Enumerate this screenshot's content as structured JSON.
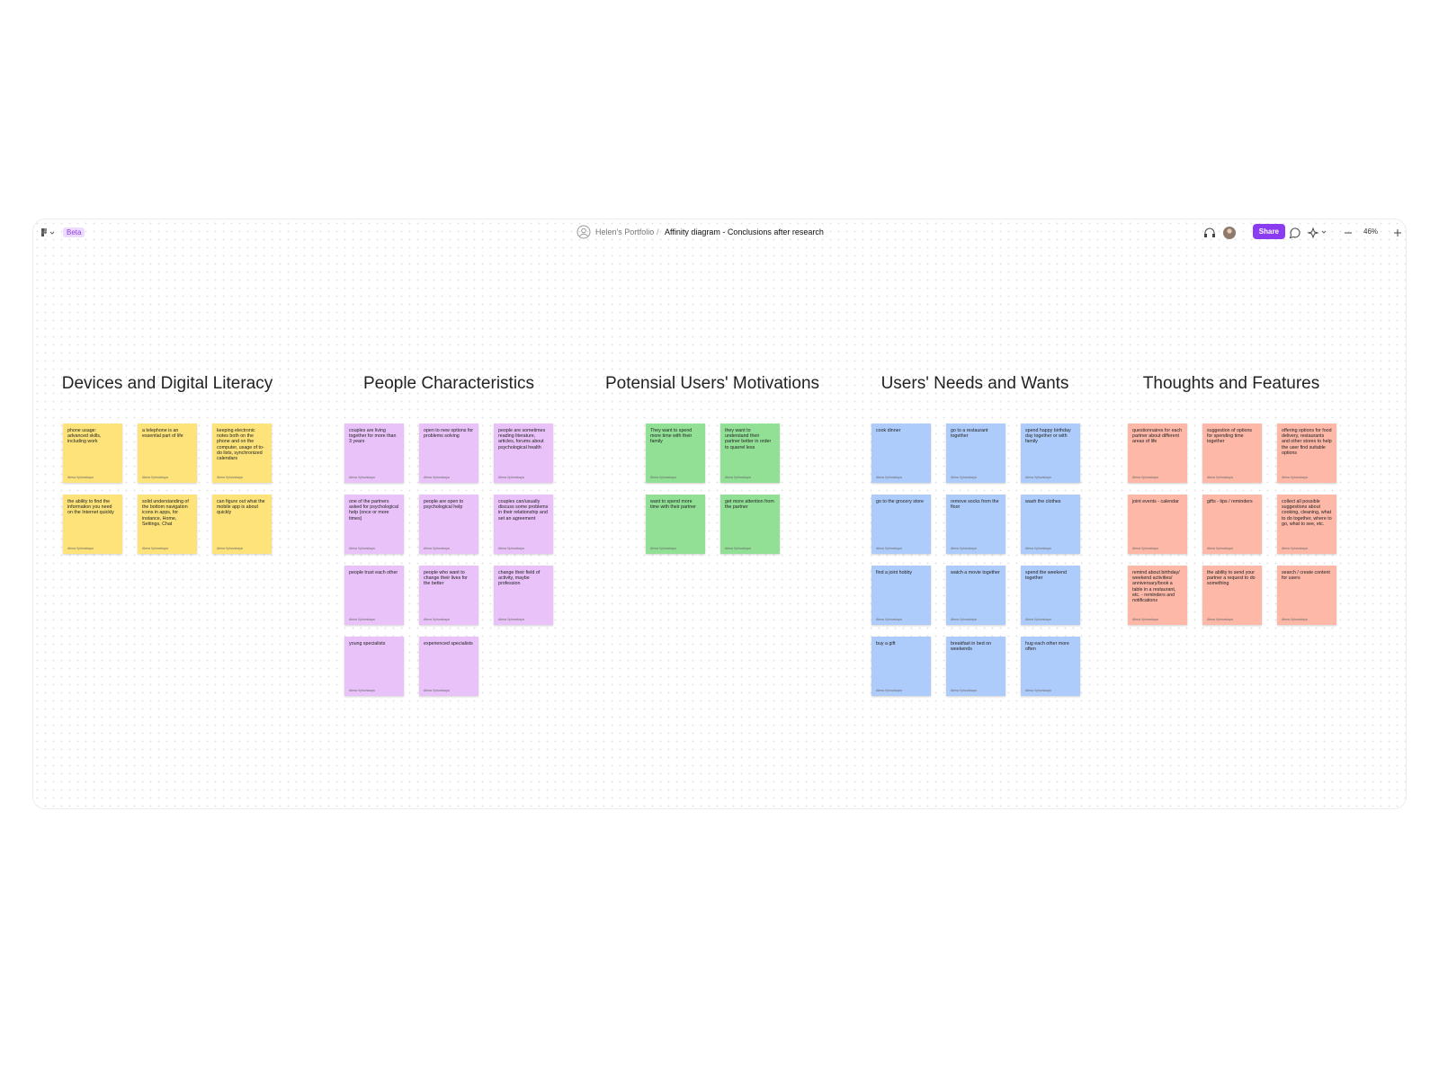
{
  "toolbar": {
    "badge": "Beta",
    "workspace": "Helen's Portfolio",
    "separator": "/",
    "file_name": "Affinity diagram - Conclusions after research",
    "share": "Share",
    "zoom": "46%"
  },
  "columns": [
    {
      "title": "Devices and Digital Literacy",
      "color": "#fde37a",
      "grid_columns": 3,
      "notes": [
        {
          "text": "phone usage: advanced skills, including work",
          "author": "Alena Vyhovskaya"
        },
        {
          "text": "a telephone is an essential part of life",
          "author": "Alena Vyhovskaya"
        },
        {
          "text": "keeping electronic notes both on the phone and on the computer, usage of to-do lists, synchronized calendars",
          "author": "Alena Vyhovskaya"
        },
        {
          "text": "the ability to find the information you need on the Internet quickly",
          "author": "Alena Vyhovskaya"
        },
        {
          "text": "solid understanding of the bottom navigation icons in apps, for instance, Home, Settings, Chat",
          "author": "Alena Vyhovskaya"
        },
        {
          "text": "can figure out what the mobile app is about quickly",
          "author": "Alena Vyhovskaya"
        }
      ]
    },
    {
      "title": "People Characteristics",
      "color": "#e8c2f8",
      "grid_columns": 3,
      "notes": [
        {
          "text": "couples are living together for more than 3 years",
          "author": "Alena Vyhovskaya"
        },
        {
          "text": "open to new options for problems solving",
          "author": "Alena Vyhovskaya"
        },
        {
          "text": "people are sometimes reading literature, articles, forums about psychological health",
          "author": "Alena Vyhovskaya"
        },
        {
          "text": "one of the partners asked for psychological help (once or more times)",
          "author": "Alena Vyhovskaya"
        },
        {
          "text": "people are open to psychological help",
          "author": "Alena Vyhovskaya"
        },
        {
          "text": "couples can/usually discuss some problems in their relationship and set an agreement",
          "author": "Alena Vyhovskaya"
        },
        {
          "text": "people trust each other",
          "author": "Alena Vyhovskaya"
        },
        {
          "text": "people who want to change their lives for the better",
          "author": "Alena Vyhovskaya"
        },
        {
          "text": "change their field of activity, maybe profession",
          "author": "Alena Vyhovskaya"
        },
        {
          "text": "young specialists",
          "author": "Alena Vyhovskaya"
        },
        {
          "text": "experienced specialists",
          "author": "Alena Vyhovskaya"
        }
      ]
    },
    {
      "title": "Potensial Users' Motivations",
      "color": "#92e096",
      "grid_columns": 2,
      "notes": [
        {
          "text": "They want to spend more time with their family",
          "author": "Alena Vyhovskaya"
        },
        {
          "text": "they want to understand their partner better in order to quarrel less",
          "author": "Alena Vyhovskaya"
        },
        {
          "text": "want to spend more time with their partner",
          "author": "Alena Vyhovskaya"
        },
        {
          "text": "get more attention from the partner",
          "author": "Alena Vyhovskaya"
        }
      ]
    },
    {
      "title": "Users' Needs and Wants",
      "color": "#aeccfb",
      "grid_columns": 3,
      "notes": [
        {
          "text": "cook dinner",
          "author": "Alena Vyhovskaya"
        },
        {
          "text": "go to a restaurant together",
          "author": "Alena Vyhovskaya"
        },
        {
          "text": "spend happy birthday day together or with family",
          "author": "Alena Vyhovskaya"
        },
        {
          "text": "go to the grocery store",
          "author": "Alena Vyhovskaya"
        },
        {
          "text": "remove socks from the floor",
          "author": "Alena Vyhovskaya"
        },
        {
          "text": "wash the clothes",
          "author": "Alena Vyhovskaya"
        },
        {
          "text": "find a joint hobby",
          "author": "Alena Vyhovskaya"
        },
        {
          "text": "watch a movie together",
          "author": "Alena Vyhovskaya"
        },
        {
          "text": "spend the weekend together",
          "author": "Alena Vyhovskaya"
        },
        {
          "text": "buy a gift",
          "author": "Alena Vyhovskaya"
        },
        {
          "text": "breakfast in bed on weekends",
          "author": "Alena Vyhovskaya"
        },
        {
          "text": "hug each other more often",
          "author": "Alena Vyhovskaya"
        }
      ]
    },
    {
      "title": "Thoughts and Features",
      "color": "#fdb8a8",
      "grid_columns": 3,
      "notes": [
        {
          "text": "questionnaires for each partner about different areas of life",
          "author": "Alena Vyhovskaya"
        },
        {
          "text": "suggestion of options for spending time together",
          "author": "Alena Vyhovskaya"
        },
        {
          "text": "offering options for food delivery, restaurants and other stores to help the user find suitable options",
          "author": "Alena Vyhovskaya"
        },
        {
          "text": "joint events - calendar",
          "author": "Alena Vyhovskaya"
        },
        {
          "text": "gifts - tips / reminders",
          "author": "Alena Vyhovskaya"
        },
        {
          "text": "collect all possible suggestions about cooking, cleaning, what to do together, where to go, what to see, etc.",
          "author": "Alena Vyhovskaya"
        },
        {
          "text": "remind about birthday/ weekend activities/ anniversary/book a table in a restaurant, etc. - reminders and notifications",
          "author": "Alena Vyhovskaya"
        },
        {
          "text": "the ability to send your partner a request to do something",
          "author": "Alena Vyhovskaya"
        },
        {
          "text": "search / create content for users",
          "author": "Alena Vyhovskaya"
        }
      ]
    }
  ]
}
